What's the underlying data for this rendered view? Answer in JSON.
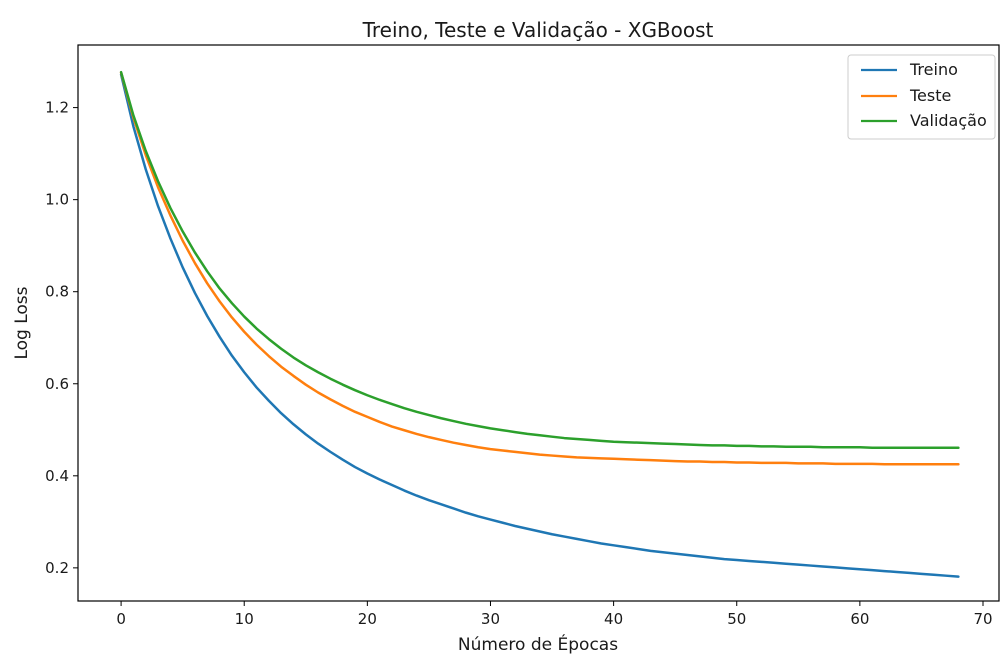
{
  "chart_data": {
    "type": "line",
    "title": "Treino, Teste e Validação - XGBoost",
    "xlabel": "Número de Épocas",
    "ylabel": "Log Loss",
    "xlim": [
      -3.5,
      71.3
    ],
    "ylim": [
      0.128,
      1.336
    ],
    "xticks": [
      0,
      10,
      20,
      30,
      40,
      50,
      60,
      70
    ],
    "yticks": [
      0.2,
      0.4,
      0.6,
      0.8,
      1.0,
      1.2
    ],
    "xtick_labels": [
      "0",
      "10",
      "20",
      "30",
      "40",
      "50",
      "60",
      "70"
    ],
    "ytick_labels": [
      "0.2",
      "0.4",
      "0.6",
      "0.8",
      "1.0",
      "1.2"
    ],
    "grid": false,
    "legend_position": "top-right",
    "x": [
      0,
      1,
      2,
      3,
      4,
      5,
      6,
      7,
      8,
      9,
      10,
      11,
      12,
      13,
      14,
      15,
      16,
      17,
      18,
      19,
      20,
      21,
      22,
      23,
      24,
      25,
      26,
      27,
      28,
      29,
      30,
      31,
      32,
      33,
      34,
      35,
      36,
      37,
      38,
      39,
      40,
      41,
      42,
      43,
      44,
      45,
      46,
      47,
      48,
      49,
      50,
      51,
      52,
      53,
      54,
      55,
      56,
      57,
      58,
      59,
      60,
      61,
      62,
      63,
      64,
      65,
      66,
      67,
      68
    ],
    "series": [
      {
        "name": "Treino",
        "color": "#1f77b4",
        "values": [
          1.272,
          1.159,
          1.066,
          0.986,
          0.916,
          0.853,
          0.797,
          0.747,
          0.702,
          0.661,
          0.625,
          0.592,
          0.563,
          0.536,
          0.512,
          0.49,
          0.47,
          0.452,
          0.435,
          0.419,
          0.405,
          0.392,
          0.38,
          0.368,
          0.357,
          0.347,
          0.338,
          0.329,
          0.32,
          0.312,
          0.305,
          0.298,
          0.291,
          0.285,
          0.279,
          0.273,
          0.268,
          0.263,
          0.258,
          0.253,
          0.249,
          0.245,
          0.241,
          0.237,
          0.234,
          0.231,
          0.228,
          0.225,
          0.222,
          0.219,
          0.217,
          0.215,
          0.213,
          0.211,
          0.209,
          0.207,
          0.205,
          0.203,
          0.201,
          0.199,
          0.197,
          0.195,
          0.193,
          0.191,
          0.189,
          0.187,
          0.185,
          0.183,
          0.181
        ]
      },
      {
        "name": "Teste",
        "color": "#ff7f0e",
        "values": [
          1.276,
          1.178,
          1.097,
          1.027,
          0.966,
          0.911,
          0.862,
          0.818,
          0.779,
          0.744,
          0.713,
          0.685,
          0.66,
          0.637,
          0.617,
          0.598,
          0.581,
          0.566,
          0.552,
          0.539,
          0.528,
          0.517,
          0.507,
          0.499,
          0.491,
          0.484,
          0.478,
          0.472,
          0.467,
          0.462,
          0.458,
          0.455,
          0.452,
          0.449,
          0.446,
          0.444,
          0.442,
          0.44,
          0.439,
          0.438,
          0.437,
          0.436,
          0.435,
          0.434,
          0.433,
          0.432,
          0.431,
          0.431,
          0.43,
          0.43,
          0.429,
          0.429,
          0.428,
          0.428,
          0.428,
          0.427,
          0.427,
          0.427,
          0.426,
          0.426,
          0.426,
          0.426,
          0.425,
          0.425,
          0.425,
          0.425,
          0.425,
          0.425,
          0.425
        ]
      },
      {
        "name": "Validação",
        "color": "#2ca02c",
        "values": [
          1.277,
          1.183,
          1.106,
          1.04,
          0.982,
          0.931,
          0.885,
          0.844,
          0.807,
          0.775,
          0.746,
          0.72,
          0.697,
          0.676,
          0.657,
          0.64,
          0.625,
          0.611,
          0.598,
          0.586,
          0.575,
          0.565,
          0.556,
          0.547,
          0.539,
          0.532,
          0.525,
          0.519,
          0.513,
          0.508,
          0.503,
          0.499,
          0.495,
          0.491,
          0.488,
          0.485,
          0.482,
          0.48,
          0.478,
          0.476,
          0.474,
          0.473,
          0.472,
          0.471,
          0.47,
          0.469,
          0.468,
          0.467,
          0.466,
          0.466,
          0.465,
          0.465,
          0.464,
          0.464,
          0.463,
          0.463,
          0.463,
          0.462,
          0.462,
          0.462,
          0.462,
          0.461,
          0.461,
          0.461,
          0.461,
          0.461,
          0.461,
          0.461,
          0.461
        ]
      }
    ]
  }
}
